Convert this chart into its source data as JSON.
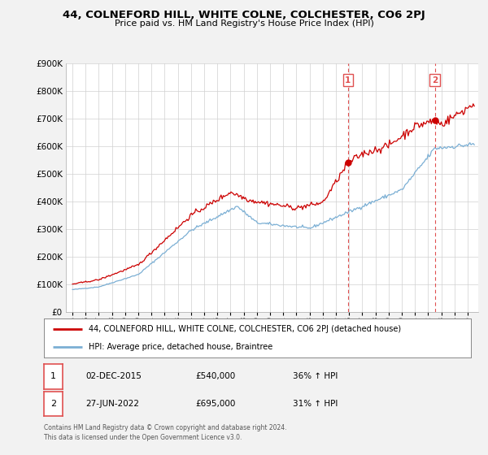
{
  "title": "44, COLNEFORD HILL, WHITE COLNE, COLCHESTER, CO6 2PJ",
  "subtitle": "Price paid vs. HM Land Registry's House Price Index (HPI)",
  "ylim": [
    0,
    900000
  ],
  "yticks": [
    0,
    100000,
    200000,
    300000,
    400000,
    500000,
    600000,
    700000,
    800000,
    900000
  ],
  "ytick_labels": [
    "£0",
    "£100K",
    "£200K",
    "£300K",
    "£400K",
    "£500K",
    "£600K",
    "£700K",
    "£800K",
    "£900K"
  ],
  "xlim_min": 1994.5,
  "xlim_max": 2025.8,
  "sale1_x": 2015.917,
  "sale1_y": 540000,
  "sale1_label": "1",
  "sale1_date": "02-DEC-2015",
  "sale1_price": "£540,000",
  "sale1_hpi": "36% ↑ HPI",
  "sale2_x": 2022.5,
  "sale2_y": 695000,
  "sale2_label": "2",
  "sale2_date": "27-JUN-2022",
  "sale2_price": "£695,000",
  "sale2_hpi": "31% ↑ HPI",
  "legend_red": "44, COLNEFORD HILL, WHITE COLNE, COLCHESTER, CO6 2PJ (detached house)",
  "legend_blue": "HPI: Average price, detached house, Braintree",
  "footer": "Contains HM Land Registry data © Crown copyright and database right 2024.\nThis data is licensed under the Open Government Licence v3.0.",
  "red_color": "#cc0000",
  "blue_color": "#7bafd4",
  "dashed_color": "#e05050",
  "bg_color": "#f2f2f2",
  "plot_bg": "#ffffff",
  "grid_color": "#d0d0d0"
}
